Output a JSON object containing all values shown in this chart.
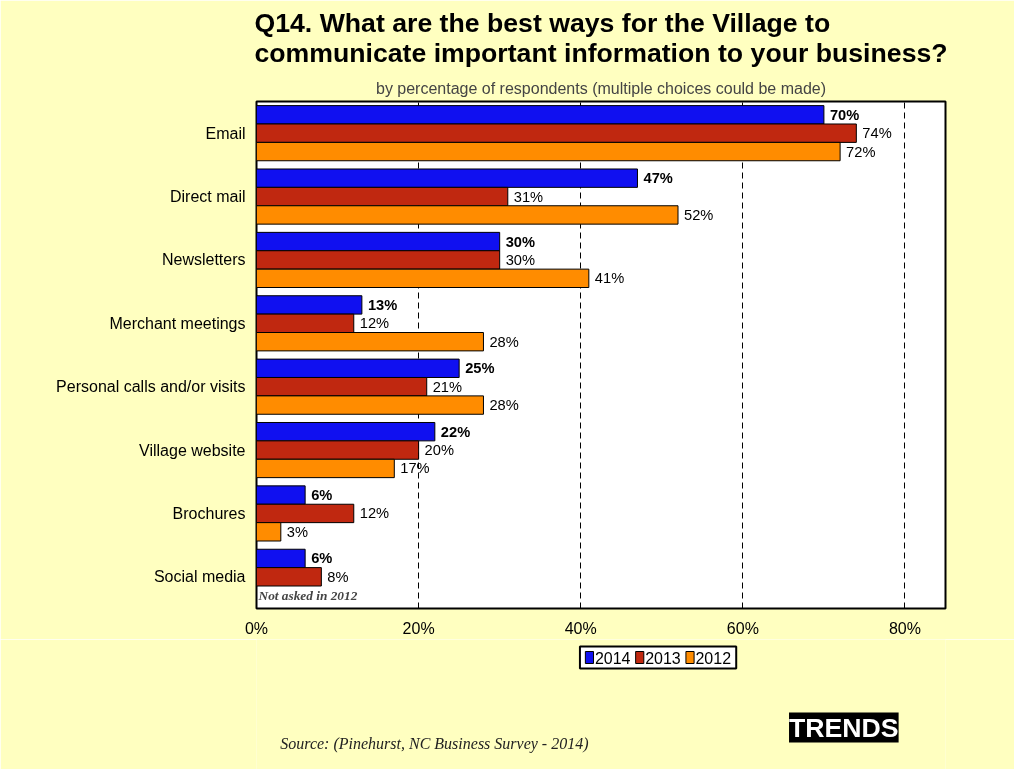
{
  "chart_data": {
    "type": "bar",
    "orientation": "horizontal",
    "title": "Q14. What are the best ways for the Village to communicate important information to your business?",
    "subtitle": "by percentage of respondents (multiple choices could be made)",
    "categories": [
      "Email",
      "Direct mail",
      "Newsletters",
      "Merchant meetings",
      "Personal calls and/or visits",
      "Village website",
      "Brochures",
      "Social media"
    ],
    "series": [
      {
        "name": "2014",
        "color": "#1010f0",
        "values": [
          70,
          47,
          30,
          13,
          25,
          22,
          6,
          6
        ],
        "value_labels": [
          "70%",
          "47%",
          "30%",
          "13%",
          "25%",
          "22%",
          "6%",
          "6%"
        ]
      },
      {
        "name": "2013",
        "color": "#c02810",
        "values": [
          74,
          31,
          30,
          12,
          21,
          20,
          12,
          8
        ],
        "value_labels": [
          "74%",
          "31%",
          "30%",
          "12%",
          "21%",
          "20%",
          "12%",
          "8%"
        ]
      },
      {
        "name": "2012",
        "color": "#ff8c00",
        "values": [
          72,
          52,
          41,
          28,
          28,
          17,
          3,
          null
        ],
        "value_labels": [
          "72%",
          "52%",
          "41%",
          "28%",
          "28%",
          "17%",
          "3%",
          null
        ]
      }
    ],
    "xlim": [
      0,
      85
    ],
    "xticks": [
      {
        "value": 0,
        "label": "0%"
      },
      {
        "value": 20,
        "label": "20%"
      },
      {
        "value": 40,
        "label": "40%"
      },
      {
        "value": 60,
        "label": "60%"
      },
      {
        "value": 80,
        "label": "80%"
      }
    ],
    "grid": "x",
    "legend": "bottom",
    "annotations": [
      {
        "text": "Not asked in 2012",
        "x": 0,
        "y": "Social media"
      },
      "Source: (Pinehurst, NC Business Survey - 2014)",
      "TRENDS"
    ]
  }
}
